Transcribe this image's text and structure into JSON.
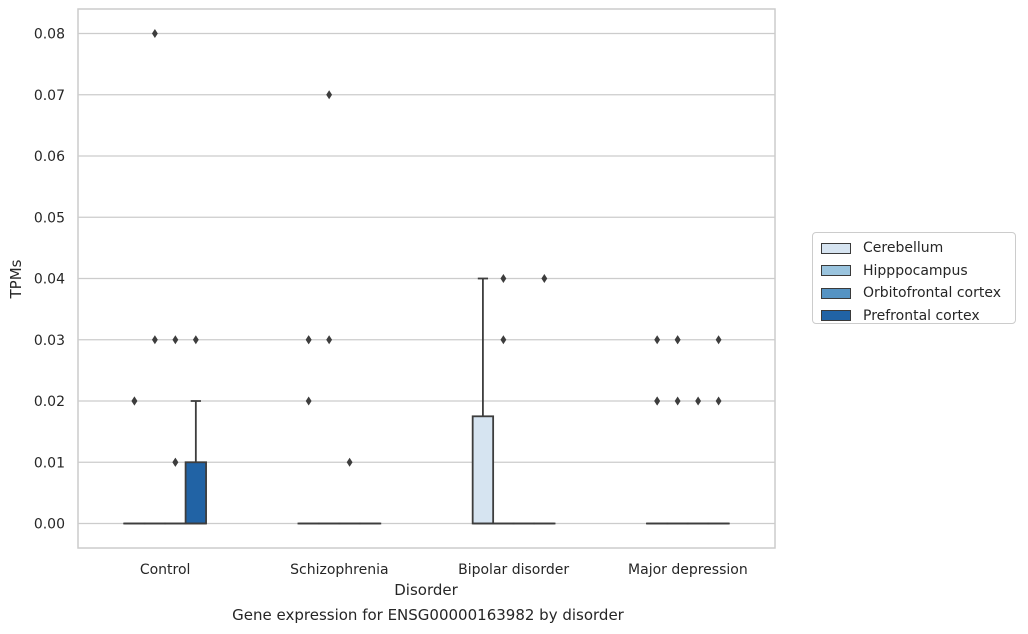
{
  "chart_data": {
    "type": "box",
    "title": "",
    "caption": "Gene expression for ENSG00000163982 by disorder",
    "xlabel": "Disorder",
    "ylabel": "TPMs",
    "categories": [
      "Control",
      "Schizophrenia",
      "Bipolar disorder",
      "Major depression"
    ],
    "ylim": [
      -0.004,
      0.084
    ],
    "yticks": [
      "0.00",
      "0.01",
      "0.02",
      "0.03",
      "0.04",
      "0.05",
      "0.06",
      "0.07",
      "0.08"
    ],
    "grid": true,
    "legend_position": "right",
    "series": [
      {
        "name": "Cerebellum",
        "color": "#d6e4f1",
        "boxes": [
          {
            "q1": 0,
            "median": 0,
            "q3": 0,
            "whisker_low": 0,
            "whisker_high": 0,
            "outliers": [
              0.02,
              0.02
            ]
          },
          {
            "q1": 0,
            "median": 0,
            "q3": 0,
            "whisker_low": 0,
            "whisker_high": 0,
            "outliers": [
              0.03,
              0.03,
              0.02
            ]
          },
          {
            "q1": 0,
            "median": 0,
            "q3": 0.0175,
            "whisker_low": 0,
            "whisker_high": 0.04,
            "outliers": []
          },
          {
            "q1": 0,
            "median": 0,
            "q3": 0,
            "whisker_low": 0,
            "whisker_high": 0,
            "outliers": [
              0.03,
              0.02,
              0.02
            ]
          }
        ]
      },
      {
        "name": "Hipppocampus",
        "color": "#9ac4de",
        "boxes": [
          {
            "q1": 0,
            "median": 0,
            "q3": 0,
            "whisker_low": 0,
            "whisker_high": 0,
            "outliers": [
              0.08,
              0.03
            ]
          },
          {
            "q1": 0,
            "median": 0,
            "q3": 0,
            "whisker_low": 0,
            "whisker_high": 0,
            "outliers": [
              0.07,
              0.03
            ]
          },
          {
            "q1": 0,
            "median": 0,
            "q3": 0,
            "whisker_low": 0,
            "whisker_high": 0,
            "outliers": [
              0.04,
              0.03
            ]
          },
          {
            "q1": 0,
            "median": 0,
            "q3": 0,
            "whisker_low": 0,
            "whisker_high": 0,
            "outliers": [
              0.03,
              0.03,
              0.02
            ]
          }
        ]
      },
      {
        "name": "Orbitofrontal cortex",
        "color": "#5593c3",
        "boxes": [
          {
            "q1": 0,
            "median": 0,
            "q3": 0,
            "whisker_low": 0,
            "whisker_high": 0,
            "outliers": [
              0.03,
              0.01,
              0.01
            ]
          },
          {
            "q1": 0,
            "median": 0,
            "q3": 0,
            "whisker_low": 0,
            "whisker_high": 0,
            "outliers": [
              0.01
            ]
          },
          {
            "q1": 0,
            "median": 0,
            "q3": 0,
            "whisker_low": 0,
            "whisker_high": 0,
            "outliers": []
          },
          {
            "q1": 0,
            "median": 0,
            "q3": 0,
            "whisker_low": 0,
            "whisker_high": 0,
            "outliers": [
              0.02
            ]
          }
        ]
      },
      {
        "name": "Prefrontal cortex",
        "color": "#2163a5",
        "boxes": [
          {
            "q1": 0,
            "median": 0,
            "q3": 0.01,
            "whisker_low": 0,
            "whisker_high": 0.02,
            "outliers": [
              0.03
            ]
          },
          {
            "q1": 0,
            "median": 0,
            "q3": 0,
            "whisker_low": 0,
            "whisker_high": 0,
            "outliers": []
          },
          {
            "q1": 0,
            "median": 0,
            "q3": 0,
            "whisker_low": 0,
            "whisker_high": 0,
            "outliers": [
              0.04
            ]
          },
          {
            "q1": 0,
            "median": 0,
            "q3": 0,
            "whisker_low": 0,
            "whisker_high": 0,
            "outliers": [
              0.03,
              0.02
            ]
          }
        ]
      }
    ]
  }
}
